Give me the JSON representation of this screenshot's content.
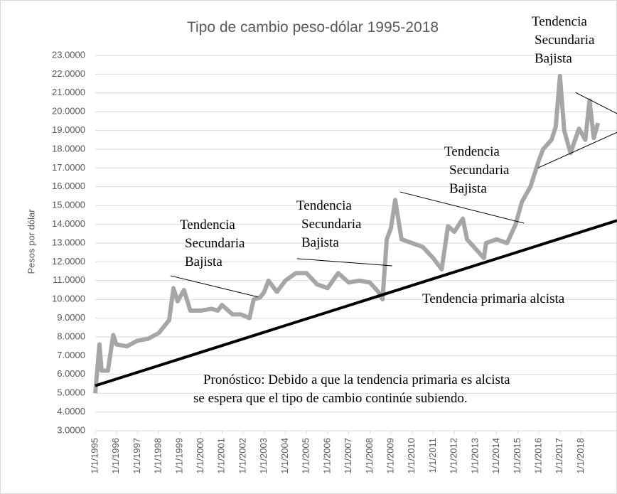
{
  "chart_data": {
    "type": "line",
    "title": "Tipo de cambio peso-dólar 1995-2018",
    "y_label": "Pesos por dólar",
    "xlim": [
      1995,
      2019.7
    ],
    "xticks": [
      {
        "value": 1995,
        "label": "1/1/1995"
      },
      {
        "value": 1996,
        "label": "1/1/1996"
      },
      {
        "value": 1997,
        "label": "1/1/1997"
      },
      {
        "value": 1998,
        "label": "1/1/1998"
      },
      {
        "value": 1999,
        "label": "1/1/1999"
      },
      {
        "value": 2000,
        "label": "1/1/2000"
      },
      {
        "value": 2001,
        "label": "1/1/2001"
      },
      {
        "value": 2002,
        "label": "1/1/2002"
      },
      {
        "value": 2003,
        "label": "1/1/2003"
      },
      {
        "value": 2004,
        "label": "1/1/2004"
      },
      {
        "value": 2005,
        "label": "1/1/2005"
      },
      {
        "value": 2006,
        "label": "1/1/2006"
      },
      {
        "value": 2007,
        "label": "1/1/2007"
      },
      {
        "value": 2008,
        "label": "1/1/2008"
      },
      {
        "value": 2009,
        "label": "1/1/2009"
      },
      {
        "value": 2010,
        "label": "1/1/2010"
      },
      {
        "value": 2011,
        "label": "1/1/2011"
      },
      {
        "value": 2012,
        "label": "1/1/2012"
      },
      {
        "value": 2013,
        "label": "1/1/2013"
      },
      {
        "value": 2014,
        "label": "1/1/2014"
      },
      {
        "value": 2015,
        "label": "1/1/2015"
      },
      {
        "value": 2016,
        "label": "1/1/2016"
      },
      {
        "value": 2017,
        "label": "1/1/2017"
      },
      {
        "value": 2018,
        "label": "1/1/2018"
      }
    ],
    "ylim": [
      3,
      23
    ],
    "yticks": [
      {
        "value": 3,
        "label": "3.0000"
      },
      {
        "value": 4,
        "label": "4.0000"
      },
      {
        "value": 5,
        "label": "5.0000"
      },
      {
        "value": 6,
        "label": "6.0000"
      },
      {
        "value": 7,
        "label": "7.0000"
      },
      {
        "value": 8,
        "label": "8.0000"
      },
      {
        "value": 9,
        "label": "9.0000"
      },
      {
        "value": 10,
        "label": "10.0000"
      },
      {
        "value": 11,
        "label": "11.0000"
      },
      {
        "value": 12,
        "label": "12.0000"
      },
      {
        "value": 13,
        "label": "13.0000"
      },
      {
        "value": 14,
        "label": "14.0000"
      },
      {
        "value": 15,
        "label": "15.0000"
      },
      {
        "value": 16,
        "label": "16.0000"
      },
      {
        "value": 17,
        "label": "17.0000"
      },
      {
        "value": 18,
        "label": "18.0000"
      },
      {
        "value": 19,
        "label": "19.0000"
      },
      {
        "value": 20,
        "label": "20.0000"
      },
      {
        "value": 21,
        "label": "21.0000"
      },
      {
        "value": 22,
        "label": "22.0000"
      },
      {
        "value": 23,
        "label": "23.0000"
      }
    ],
    "grid": true,
    "color": "#a6a6a6",
    "x": [
      1995.0,
      1995.1,
      1995.2,
      1995.3,
      1995.6,
      1995.85,
      1996.0,
      1996.5,
      1997.0,
      1997.5,
      1998.0,
      1998.5,
      1998.7,
      1998.9,
      1999.2,
      1999.5,
      2000.0,
      2000.5,
      2000.8,
      2001.0,
      2001.5,
      2001.9,
      2002.3,
      2002.5,
      2002.8,
      2003.0,
      2003.2,
      2003.6,
      2004.0,
      2004.5,
      2005.0,
      2005.5,
      2006.0,
      2006.5,
      2007.0,
      2007.5,
      2008.0,
      2008.4,
      2008.6,
      2008.8,
      2009.0,
      2009.2,
      2009.5,
      2010.0,
      2010.5,
      2011.0,
      2011.4,
      2011.7,
      2012.0,
      2012.4,
      2012.6,
      2013.0,
      2013.4,
      2013.5,
      2014.0,
      2014.5,
      2014.9,
      2015.2,
      2015.6,
      2016.0,
      2016.2,
      2016.6,
      2016.8,
      2017.0,
      2017.2,
      2017.5,
      2017.9,
      2018.2,
      2018.4,
      2018.6,
      2018.8
    ],
    "values": [
      5.0,
      6.3,
      7.6,
      6.2,
      6.2,
      8.1,
      7.6,
      7.5,
      7.8,
      7.9,
      8.2,
      8.9,
      10.6,
      9.9,
      10.5,
      9.4,
      9.4,
      9.5,
      9.4,
      9.7,
      9.2,
      9.2,
      9.0,
      10.0,
      10.1,
      10.4,
      11.0,
      10.4,
      11.0,
      11.4,
      11.4,
      10.8,
      10.6,
      11.4,
      10.9,
      11.0,
      10.9,
      10.4,
      10.0,
      13.2,
      13.8,
      15.3,
      13.2,
      13.0,
      12.8,
      12.2,
      11.6,
      13.9,
      13.6,
      14.3,
      13.2,
      12.7,
      12.2,
      13.0,
      13.2,
      13.0,
      14.0,
      15.2,
      16.0,
      17.4,
      18.0,
      18.5,
      19.2,
      21.9,
      19.0,
      17.8,
      19.1,
      18.5,
      20.6,
      18.6,
      19.4
    ],
    "trend_lines": [
      {
        "x": [
          1995,
          2019.7
        ],
        "y": [
          5.4,
          14.2
        ]
      },
      {
        "x": [
          1998.56,
          2002.7
        ],
        "y": [
          11.26,
          10.13
        ]
      },
      {
        "x": [
          2004.55,
          2009.05
        ],
        "y": [
          12.17,
          11.79
        ]
      },
      {
        "x": [
          2009.42,
          2015.3
        ],
        "y": [
          15.73,
          14.06
        ]
      },
      {
        "x": [
          2015.95,
          2019.7
        ],
        "y": [
          17.0,
          18.9
        ]
      },
      {
        "x": [
          2017.73,
          2019.7
        ],
        "y": [
          21.03,
          19.9
        ]
      }
    ],
    "annotations": [
      {
        "lines": [
          "Tendencia",
          "Secundaria",
          "Bajista"
        ]
      },
      {
        "lines": [
          "Tendencia",
          "Secundaria",
          "Bajista"
        ]
      },
      {
        "lines": [
          "Tendencia",
          "Secundaria",
          "Bajista"
        ]
      },
      {
        "lines": [
          "Tendencia",
          "Secundaria",
          "Bajista"
        ]
      },
      {
        "lines": [
          "Tendencia primaria alcista"
        ]
      },
      {
        "lines": [
          "Pronóstico: Debido a que la tendencia primaria es alcista",
          "se espera que el tipo de cambio continúe subiendo."
        ]
      }
    ]
  }
}
